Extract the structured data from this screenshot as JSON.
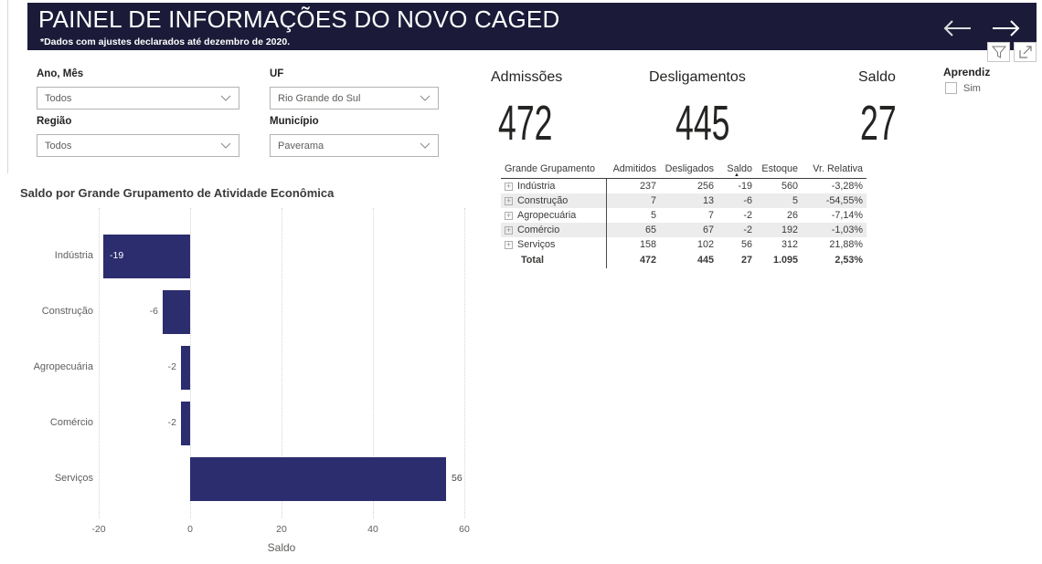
{
  "header": {
    "title": "PAINEL DE INFORMAÇÕES DO NOVO CAGED",
    "subtitle": "*Dados com ajustes declarados até dezembro de 2020.",
    "bg_color": "#1b1b39"
  },
  "filters": [
    {
      "label": "Ano, Mês",
      "value": "Todos"
    },
    {
      "label": "UF",
      "value": "Rio Grande do Sul"
    },
    {
      "label": "Região",
      "value": "Todos"
    },
    {
      "label": "Município",
      "value": "Paverama"
    }
  ],
  "kpis": [
    {
      "label": "Admissões",
      "value": "472"
    },
    {
      "label": "Desligamentos",
      "value": "445"
    },
    {
      "label": "Saldo",
      "value": "27"
    }
  ],
  "aprendiz": {
    "label": "Aprendiz",
    "option": "Sim",
    "checked": false
  },
  "table": {
    "columns": [
      "Grande Grupamento",
      "Admitidos",
      "Desligados",
      "Saldo",
      "Estoque",
      "Vr. Relativa"
    ],
    "sort_column": "Saldo",
    "sort_indicator": "▲",
    "rows": [
      {
        "name": "Indústria",
        "admitidos": "237",
        "desligados": "256",
        "saldo": "-19",
        "estoque": "560",
        "vr": "-3,28%"
      },
      {
        "name": "Construção",
        "admitidos": "7",
        "desligados": "13",
        "saldo": "-6",
        "estoque": "5",
        "vr": "-54,55%"
      },
      {
        "name": "Agropecuária",
        "admitidos": "5",
        "desligados": "7",
        "saldo": "-2",
        "estoque": "26",
        "vr": "-7,14%"
      },
      {
        "name": "Comércio",
        "admitidos": "65",
        "desligados": "67",
        "saldo": "-2",
        "estoque": "192",
        "vr": "-1,03%"
      },
      {
        "name": "Serviços",
        "admitidos": "158",
        "desligados": "102",
        "saldo": "56",
        "estoque": "312",
        "vr": "21,88%"
      }
    ],
    "total": {
      "name": "Total",
      "admitidos": "472",
      "desligados": "445",
      "saldo": "27",
      "estoque": "1.095",
      "vr": "2,53%"
    }
  },
  "chart_data": {
    "type": "bar",
    "orientation": "horizontal",
    "title": "Saldo por Grande Grupamento de Atividade Econômica",
    "categories": [
      "Indústria",
      "Construção",
      "Agropecuária",
      "Comércio",
      "Serviços"
    ],
    "values": [
      -19,
      -6,
      -2,
      -2,
      56
    ],
    "xlabel": "Saldo",
    "xlim": [
      -20,
      60
    ],
    "xticks": [
      -20,
      0,
      20,
      40,
      60
    ],
    "bar_color": "#2b2d6e",
    "grid": "dotted-vertical",
    "legend": "none"
  },
  "colors": {
    "header_bg": "#1b1b39",
    "bar": "#2b2d6e",
    "stripe": "#ececec",
    "text_dark": "#252423",
    "text_gray": "#605e5c"
  }
}
